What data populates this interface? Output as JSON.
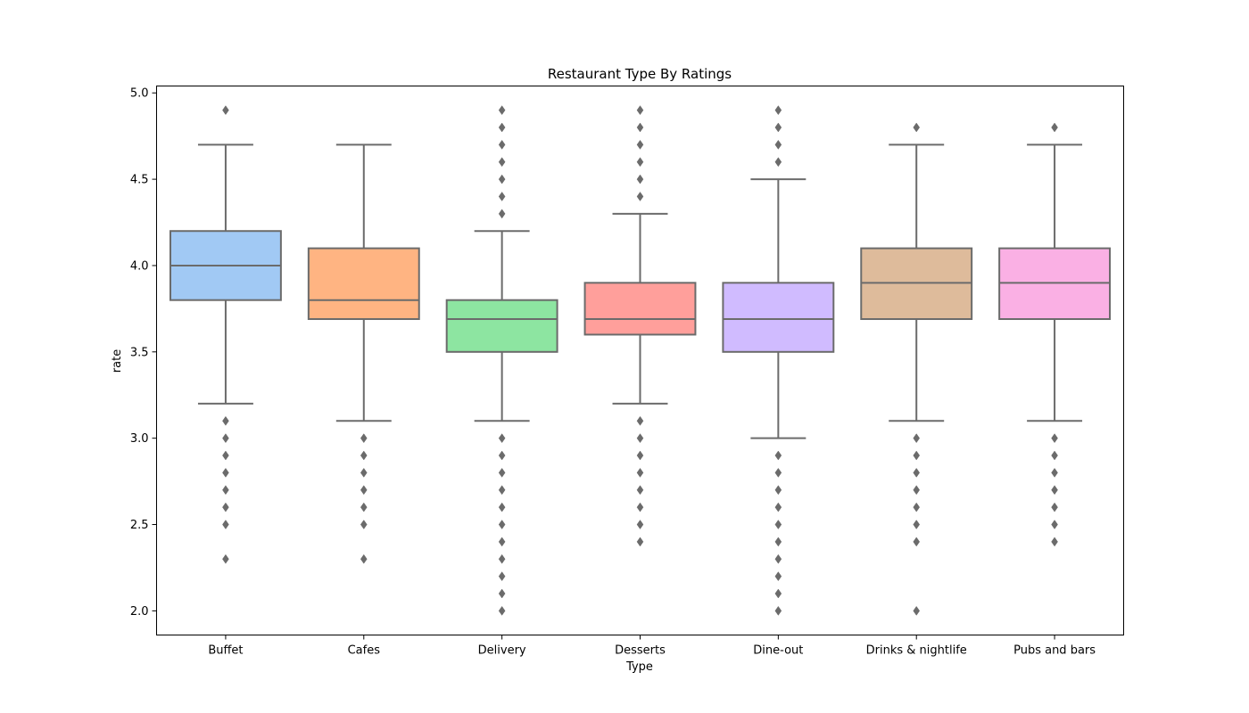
{
  "chart_data": {
    "type": "box",
    "title": "Restaurant Type By Ratings",
    "xlabel": "Type",
    "ylabel": "rate",
    "ylim": [
      1.86,
      5.04
    ],
    "yticks": [
      "2.0",
      "2.5",
      "3.0",
      "3.5",
      "4.0",
      "4.5",
      "5.0"
    ],
    "grid": false,
    "categories": [
      "Buffet",
      "Cafes",
      "Delivery",
      "Desserts",
      "Dine-out",
      "Drinks & nightlife",
      "Pubs and bars"
    ],
    "colors": [
      "#a1c9f4",
      "#ffb482",
      "#8de5a1",
      "#ff9f9b",
      "#d0bbff",
      "#debb9b",
      "#fab0e4"
    ],
    "line_color": "#6b6b6b",
    "boxes": [
      {
        "whislo": 3.2,
        "q1": 3.8,
        "med": 4.0,
        "q3": 4.2,
        "whishi": 4.7,
        "fliers": [
          4.9,
          3.1,
          3.0,
          2.9,
          2.8,
          2.7,
          2.6,
          2.5,
          2.3
        ]
      },
      {
        "whislo": 3.1,
        "q1": 3.69,
        "med": 3.8,
        "q3": 4.1,
        "whishi": 4.7,
        "fliers": [
          3.0,
          2.9,
          2.8,
          2.7,
          2.6,
          2.5,
          2.3
        ]
      },
      {
        "whislo": 3.1,
        "q1": 3.5,
        "med": 3.69,
        "q3": 3.8,
        "whishi": 4.2,
        "fliers": [
          4.9,
          4.8,
          4.7,
          4.6,
          4.5,
          4.4,
          4.3,
          3.0,
          2.9,
          2.8,
          2.7,
          2.6,
          2.5,
          2.4,
          2.3,
          2.2,
          2.1,
          2.0
        ]
      },
      {
        "whislo": 3.2,
        "q1": 3.6,
        "med": 3.69,
        "q3": 3.9,
        "whishi": 4.3,
        "fliers": [
          4.9,
          4.8,
          4.7,
          4.6,
          4.5,
          4.4,
          3.1,
          3.0,
          2.9,
          2.8,
          2.7,
          2.6,
          2.5,
          2.4
        ]
      },
      {
        "whislo": 3.0,
        "q1": 3.5,
        "med": 3.69,
        "q3": 3.9,
        "whishi": 4.5,
        "fliers": [
          4.9,
          4.8,
          4.7,
          4.6,
          2.9,
          2.8,
          2.7,
          2.6,
          2.5,
          2.4,
          2.3,
          2.2,
          2.1,
          2.0
        ]
      },
      {
        "whislo": 3.1,
        "q1": 3.69,
        "med": 3.9,
        "q3": 4.1,
        "whishi": 4.7,
        "fliers": [
          4.8,
          3.0,
          2.9,
          2.8,
          2.7,
          2.6,
          2.5,
          2.4,
          2.0
        ]
      },
      {
        "whislo": 3.1,
        "q1": 3.69,
        "med": 3.9,
        "q3": 4.1,
        "whishi": 4.7,
        "fliers": [
          4.8,
          3.0,
          2.9,
          2.8,
          2.7,
          2.6,
          2.5,
          2.4
        ]
      }
    ]
  }
}
